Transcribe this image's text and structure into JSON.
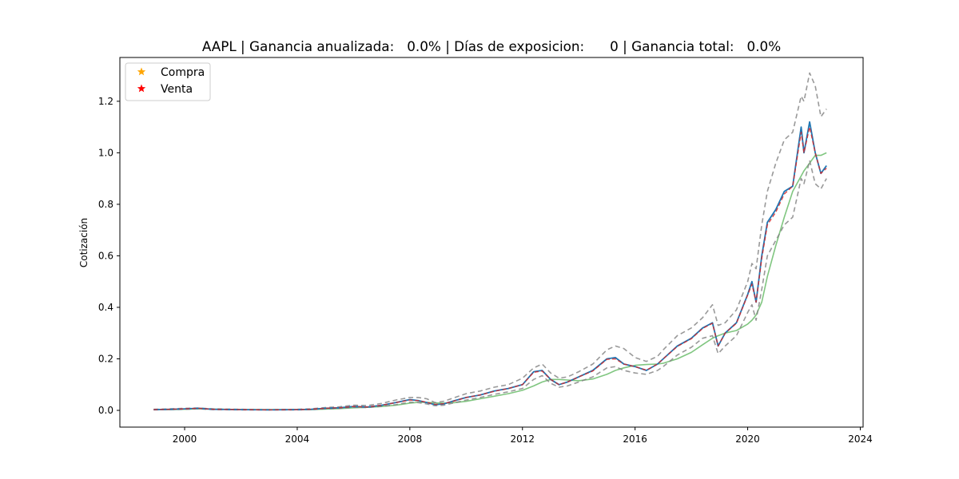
{
  "chart_data": {
    "type": "line",
    "title": "AAPL | Ganancia anualizada:   0.0% | Días de exposicion:      0 | Ganancia total:   0.0%",
    "xlabel": "",
    "ylabel": "Cotización",
    "xlim": [
      1997.7,
      2024.1
    ],
    "ylim": [
      -0.065,
      1.37
    ],
    "grid": false,
    "legend_placement": "top-left",
    "x_ticks": [
      2000,
      2004,
      2008,
      2012,
      2016,
      2020,
      2024
    ],
    "y_ticks": [
      0.0,
      0.2,
      0.4,
      0.6,
      0.8,
      1.0,
      1.2
    ],
    "x_tick_labels": [
      "2000",
      "2004",
      "2008",
      "2012",
      "2016",
      "2020",
      "2024"
    ],
    "y_tick_labels": [
      "0.0",
      "0.2",
      "0.4",
      "0.6",
      "0.8",
      "1.0",
      "1.2"
    ],
    "legend": [
      {
        "label": "Compra",
        "marker": "star",
        "color": "#ffa500"
      },
      {
        "label": "Venta",
        "marker": "star",
        "color": "#ff0000"
      }
    ],
    "x": [
      1998.9,
      1999.5,
      2000.0,
      2000.5,
      2001.0,
      2002.0,
      2003.0,
      2004.0,
      2004.5,
      2005.0,
      2005.5,
      2006.0,
      2006.5,
      2007.0,
      2007.5,
      2008.0,
      2008.3,
      2008.6,
      2008.9,
      2009.2,
      2009.6,
      2010.0,
      2010.5,
      2011.0,
      2011.5,
      2012.0,
      2012.4,
      2012.7,
      2013.0,
      2013.3,
      2013.6,
      2014.0,
      2014.5,
      2015.0,
      2015.3,
      2015.6,
      2016.0,
      2016.4,
      2016.8,
      2017.0,
      2017.5,
      2018.0,
      2018.4,
      2018.75,
      2018.95,
      2019.2,
      2019.6,
      2020.0,
      2020.15,
      2020.3,
      2020.5,
      2020.7,
      2021.0,
      2021.3,
      2021.6,
      2021.9,
      2022.0,
      2022.2,
      2022.4,
      2022.6,
      2022.8
    ],
    "series": [
      {
        "name": "price",
        "color": "#1f77b4",
        "values": [
          0.003,
          0.004,
          0.006,
          0.008,
          0.004,
          0.003,
          0.002,
          0.003,
          0.004,
          0.008,
          0.01,
          0.015,
          0.013,
          0.02,
          0.03,
          0.042,
          0.038,
          0.03,
          0.022,
          0.025,
          0.038,
          0.05,
          0.06,
          0.075,
          0.085,
          0.1,
          0.15,
          0.155,
          0.12,
          0.1,
          0.11,
          0.13,
          0.155,
          0.2,
          0.205,
          0.18,
          0.17,
          0.155,
          0.18,
          0.2,
          0.25,
          0.28,
          0.32,
          0.34,
          0.25,
          0.3,
          0.34,
          0.45,
          0.5,
          0.42,
          0.6,
          0.73,
          0.78,
          0.85,
          0.87,
          1.1,
          1.0,
          1.12,
          1.0,
          0.92,
          0.95
        ]
      },
      {
        "name": "smooth",
        "color": "#d62728",
        "values": [
          0.003,
          0.004,
          0.006,
          0.008,
          0.004,
          0.003,
          0.002,
          0.003,
          0.004,
          0.008,
          0.01,
          0.015,
          0.013,
          0.02,
          0.03,
          0.04,
          0.038,
          0.031,
          0.023,
          0.026,
          0.037,
          0.05,
          0.06,
          0.074,
          0.085,
          0.1,
          0.148,
          0.153,
          0.12,
          0.1,
          0.11,
          0.13,
          0.153,
          0.198,
          0.2,
          0.18,
          0.17,
          0.156,
          0.18,
          0.2,
          0.248,
          0.278,
          0.318,
          0.338,
          0.25,
          0.3,
          0.338,
          0.448,
          0.49,
          0.42,
          0.59,
          0.72,
          0.77,
          0.84,
          0.87,
          1.08,
          1.0,
          1.1,
          1.0,
          0.92,
          0.94
        ]
      },
      {
        "name": "band-upper",
        "color": "#808080",
        "values": [
          0.004,
          0.006,
          0.008,
          0.009,
          0.006,
          0.004,
          0.003,
          0.004,
          0.006,
          0.011,
          0.014,
          0.02,
          0.019,
          0.027,
          0.04,
          0.05,
          0.05,
          0.045,
          0.03,
          0.035,
          0.05,
          0.065,
          0.075,
          0.09,
          0.1,
          0.125,
          0.165,
          0.18,
          0.145,
          0.125,
          0.13,
          0.15,
          0.18,
          0.235,
          0.25,
          0.24,
          0.205,
          0.19,
          0.21,
          0.235,
          0.29,
          0.32,
          0.36,
          0.41,
          0.33,
          0.34,
          0.39,
          0.5,
          0.57,
          0.55,
          0.72,
          0.85,
          0.96,
          1.05,
          1.08,
          1.22,
          1.2,
          1.31,
          1.26,
          1.14,
          1.17
        ]
      },
      {
        "name": "band-lower",
        "color": "#808080",
        "values": [
          0.002,
          0.003,
          0.004,
          0.006,
          0.003,
          0.002,
          0.0015,
          0.002,
          0.003,
          0.006,
          0.008,
          0.012,
          0.011,
          0.016,
          0.022,
          0.032,
          0.03,
          0.025,
          0.018,
          0.02,
          0.03,
          0.04,
          0.05,
          0.062,
          0.072,
          0.085,
          0.12,
          0.135,
          0.105,
          0.09,
          0.095,
          0.11,
          0.13,
          0.165,
          0.17,
          0.155,
          0.145,
          0.14,
          0.155,
          0.17,
          0.215,
          0.245,
          0.28,
          0.29,
          0.22,
          0.25,
          0.29,
          0.38,
          0.41,
          0.35,
          0.47,
          0.6,
          0.66,
          0.72,
          0.75,
          0.9,
          0.88,
          0.97,
          0.88,
          0.86,
          0.9
        ]
      },
      {
        "name": "trend",
        "color": "#2ca02c",
        "values": [
          0.003,
          0.003,
          0.004,
          0.006,
          0.005,
          0.003,
          0.003,
          0.003,
          0.003,
          0.005,
          0.007,
          0.01,
          0.012,
          0.015,
          0.02,
          0.028,
          0.031,
          0.031,
          0.029,
          0.028,
          0.03,
          0.035,
          0.045,
          0.055,
          0.065,
          0.078,
          0.095,
          0.11,
          0.12,
          0.12,
          0.118,
          0.115,
          0.122,
          0.14,
          0.155,
          0.165,
          0.175,
          0.178,
          0.18,
          0.183,
          0.2,
          0.225,
          0.255,
          0.28,
          0.29,
          0.3,
          0.31,
          0.335,
          0.35,
          0.37,
          0.42,
          0.52,
          0.64,
          0.75,
          0.85,
          0.91,
          0.93,
          0.96,
          0.99,
          0.99,
          1.0
        ]
      }
    ]
  }
}
